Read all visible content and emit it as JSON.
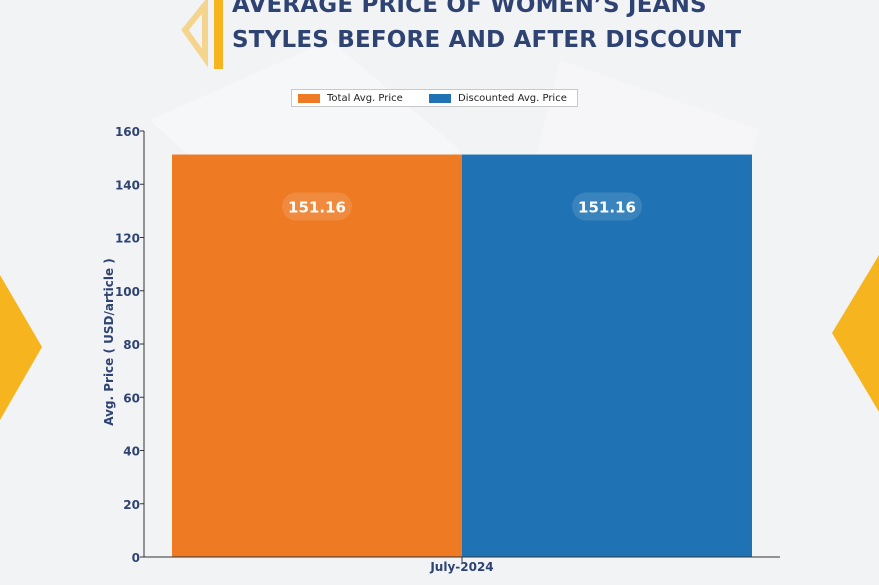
{
  "title": {
    "line1": "AVERAGE PRICE OF WOMEN’S JEANS",
    "line2": "STYLES BEFORE AND AFTER DISCOUNT"
  },
  "colors": {
    "title": "#2e4372",
    "accent": "#f6b51e",
    "series_total": "#ee7a24",
    "series_discounted": "#1f73b4"
  },
  "legend": {
    "items": [
      {
        "label": "Total Avg. Price"
      },
      {
        "label": "Discounted Avg. Price"
      }
    ],
    "placement": "top-center"
  },
  "chart_data": {
    "type": "bar",
    "categories": [
      "July-2024"
    ],
    "series": [
      {
        "name": "Total Avg. Price",
        "values": [
          151.16
        ],
        "color": "#ee7a24"
      },
      {
        "name": "Discounted Avg. Price",
        "values": [
          151.16
        ],
        "color": "#1f73b4"
      }
    ],
    "data_labels": [
      "151.16",
      "151.16"
    ],
    "ylabel": "Avg. Price ( USD/article )",
    "xlabel": "",
    "ylim": [
      0,
      160
    ],
    "yticks": [
      0,
      20,
      40,
      60,
      80,
      100,
      120,
      140,
      160
    ],
    "grid": false
  }
}
